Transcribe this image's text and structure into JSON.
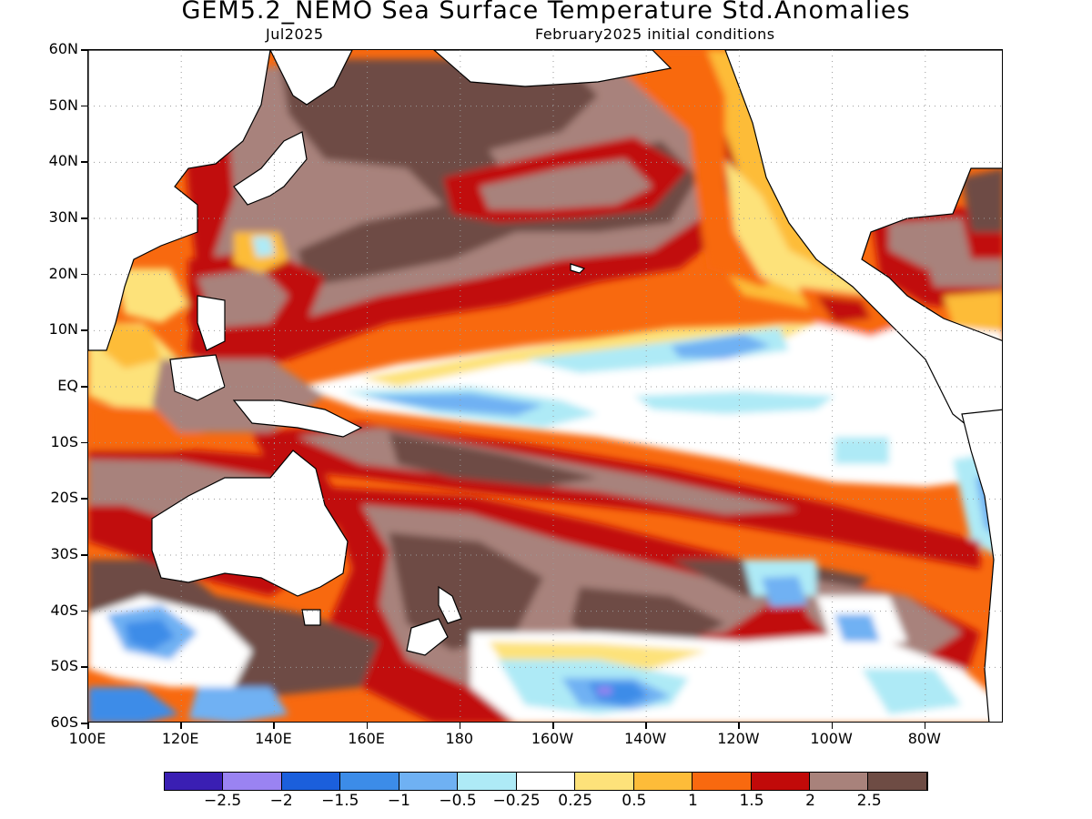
{
  "title": "GEM5.2_NEMO Sea Surface Temperature Std.Anomalies",
  "subtitle_left": "Jul2025",
  "subtitle_right": "February2025 initial conditions",
  "lat_labels": [
    "60N",
    "50N",
    "40N",
    "30N",
    "20N",
    "10N",
    "EQ",
    "10S",
    "20S",
    "30S",
    "40S",
    "50S",
    "60S"
  ],
  "lon_labels": [
    "100E",
    "120E",
    "140E",
    "160E",
    "180",
    "160W",
    "140W",
    "120W",
    "100W",
    "80W"
  ],
  "colorbar": {
    "colors": [
      "#3a1fb3",
      "#9a83f2",
      "#1b5fdc",
      "#3c8ce8",
      "#6fb1f3",
      "#aeeaf6",
      "#ffffff",
      "#fde27a",
      "#fdbc39",
      "#f8690f",
      "#c10a09",
      "#a8827b",
      "#6e4c44"
    ],
    "labels": [
      "-2.5",
      "-2",
      "-1.5",
      "-1",
      "-0.5",
      "-0.25",
      "0.25",
      "0.5",
      "1",
      "1.5",
      "2",
      "2.5"
    ]
  },
  "palette": {
    "land": "#ffffff",
    "coast": "#000000",
    "grid": "#9a9a9a"
  }
}
